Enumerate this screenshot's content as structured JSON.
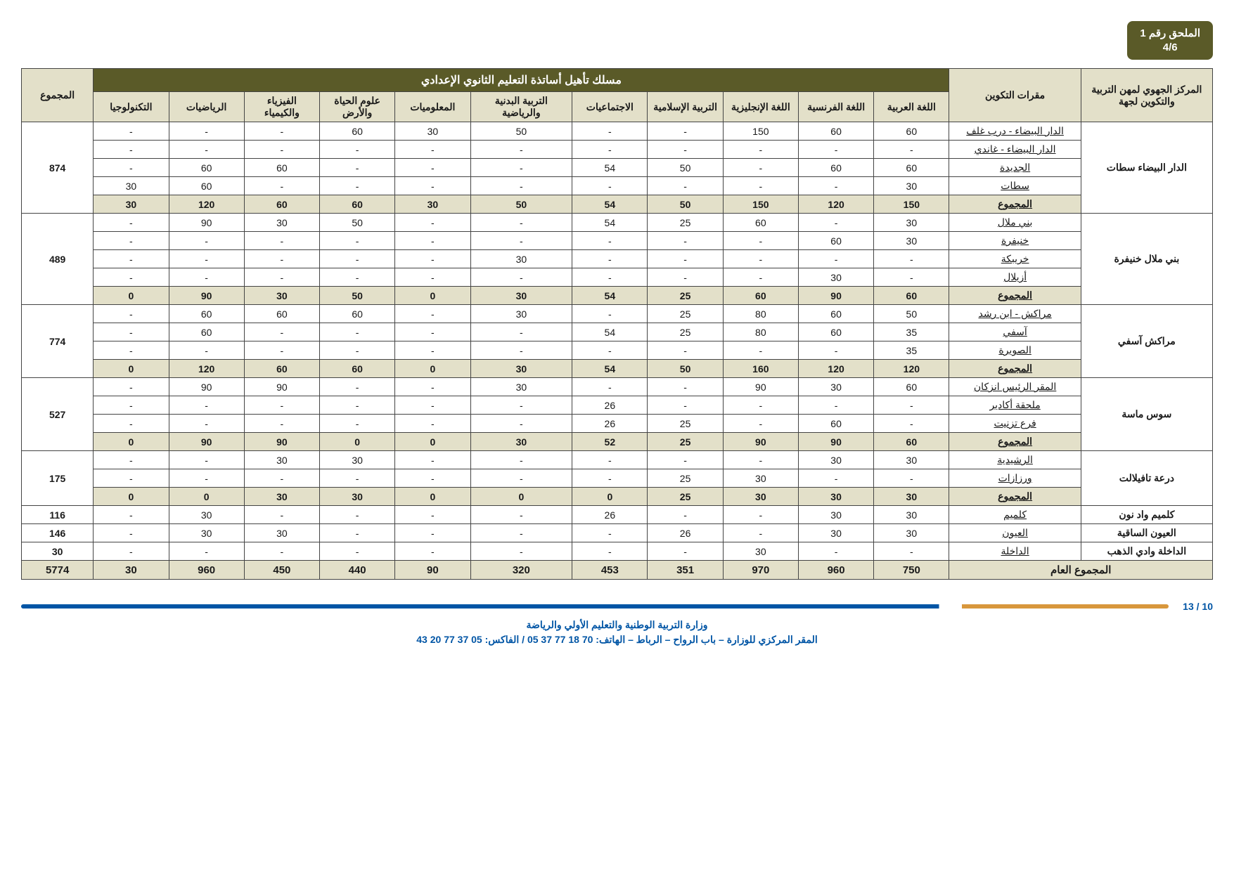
{
  "badge": {
    "line1": "الملحق رقم 1",
    "line2": "4/6"
  },
  "headers": {
    "region": "المركز الجهوي لمهن التربية والتكوين لجهة",
    "center": "مقرات التكوين",
    "group": "مسلك تأهيل أساتذة التعليم الثانوي الإعدادي",
    "total": "المجموع",
    "subjects": [
      "اللغة العربية",
      "اللغة الفرنسية",
      "اللغة الإنجليزية",
      "التربية الإسلامية",
      "الاجتماعيات",
      "التربية البدنية والرياضية",
      "المعلوميات",
      "علوم الحياة والأرض",
      "الفيزياء والكيمياء",
      "الرياضيات",
      "التكنولوجيا"
    ]
  },
  "total_label": "المجموع",
  "grand_total_label": "المجموع العام",
  "blocks": [
    {
      "region": "الدار البيضاء سطات",
      "sum": "874",
      "rows": [
        {
          "center": "الدار البيضاء - درب غلف",
          "v": [
            "60",
            "60",
            "150",
            "-",
            "-",
            "50",
            "30",
            "60",
            "-",
            "-",
            "-"
          ]
        },
        {
          "center": "الدار البيضاء - غاندي",
          "v": [
            "-",
            "-",
            "-",
            "-",
            "-",
            "-",
            "-",
            "-",
            "-",
            "-",
            "-"
          ]
        },
        {
          "center": "الجديدة",
          "v": [
            "60",
            "60",
            "-",
            "50",
            "54",
            "-",
            "-",
            "-",
            "60",
            "60",
            "-"
          ]
        },
        {
          "center": "سطات",
          "v": [
            "30",
            "-",
            "-",
            "-",
            "-",
            "-",
            "-",
            "-",
            "-",
            "60",
            "30"
          ]
        }
      ],
      "total": [
        "150",
        "120",
        "150",
        "50",
        "54",
        "50",
        "30",
        "60",
        "60",
        "120",
        "30"
      ]
    },
    {
      "region": "بني ملال خنيفرة",
      "sum": "489",
      "rows": [
        {
          "center": "بني ملال",
          "v": [
            "30",
            "-",
            "60",
            "25",
            "54",
            "-",
            "-",
            "50",
            "30",
            "90",
            "-"
          ]
        },
        {
          "center": "خنيفرة",
          "v": [
            "30",
            "60",
            "-",
            "-",
            "-",
            "-",
            "-",
            "-",
            "-",
            "-",
            "-"
          ]
        },
        {
          "center": "خريبكة",
          "v": [
            "-",
            "-",
            "-",
            "-",
            "-",
            "30",
            "-",
            "-",
            "-",
            "-",
            "-"
          ]
        },
        {
          "center": "أزيلال",
          "v": [
            "-",
            "30",
            "-",
            "-",
            "-",
            "-",
            "-",
            "-",
            "-",
            "-",
            "-"
          ]
        }
      ],
      "total": [
        "60",
        "90",
        "60",
        "25",
        "54",
        "30",
        "0",
        "50",
        "30",
        "90",
        "0"
      ]
    },
    {
      "region": "مراكش آسفي",
      "sum": "774",
      "rows": [
        {
          "center": "مراكش - ابن رشد",
          "v": [
            "50",
            "60",
            "80",
            "25",
            "-",
            "30",
            "-",
            "60",
            "60",
            "60",
            "-"
          ]
        },
        {
          "center": "آسفي",
          "v": [
            "35",
            "60",
            "80",
            "25",
            "54",
            "-",
            "-",
            "-",
            "-",
            "60",
            "-"
          ]
        },
        {
          "center": "الصويرة",
          "v": [
            "35",
            "-",
            "-",
            "-",
            "-",
            "-",
            "-",
            "-",
            "-",
            "-",
            "-"
          ]
        }
      ],
      "total": [
        "120",
        "120",
        "160",
        "50",
        "54",
        "30",
        "0",
        "60",
        "60",
        "120",
        "0"
      ]
    },
    {
      "region": "سوس ماسة",
      "sum": "527",
      "rows": [
        {
          "center": "المقر الرئيس انزكان",
          "v": [
            "60",
            "30",
            "90",
            "-",
            "-",
            "30",
            "-",
            "-",
            "90",
            "90",
            "-"
          ]
        },
        {
          "center": "ملحقة أكادير",
          "v": [
            "-",
            "-",
            "-",
            "-",
            "26",
            "-",
            "-",
            "-",
            "-",
            "-",
            "-"
          ]
        },
        {
          "center": "فرع تزنيت",
          "v": [
            "-",
            "60",
            "-",
            "25",
            "26",
            "-",
            "-",
            "-",
            "-",
            "-",
            "-"
          ]
        }
      ],
      "total": [
        "60",
        "90",
        "90",
        "25",
        "52",
        "30",
        "0",
        "0",
        "90",
        "90",
        "0"
      ]
    },
    {
      "region": "درعة تافيلالت",
      "sum": "175",
      "rows": [
        {
          "center": "الرشيدية",
          "v": [
            "30",
            "30",
            "-",
            "-",
            "-",
            "-",
            "-",
            "30",
            "30",
            "-",
            "-"
          ]
        },
        {
          "center": "ورزازات",
          "v": [
            "-",
            "-",
            "30",
            "25",
            "-",
            "-",
            "-",
            "-",
            "-",
            "-",
            "-"
          ]
        }
      ],
      "total": [
        "30",
        "30",
        "30",
        "25",
        "0",
        "0",
        "0",
        "30",
        "30",
        "0",
        "0"
      ]
    }
  ],
  "single_rows": [
    {
      "region": "كلميم واد نون",
      "center": "كلميم",
      "sum": "116",
      "v": [
        "30",
        "30",
        "-",
        "-",
        "26",
        "-",
        "-",
        "-",
        "-",
        "30",
        "-"
      ]
    },
    {
      "region": "العيون الساقية",
      "center": "العيون",
      "sum": "146",
      "v": [
        "30",
        "30",
        "-",
        "26",
        "-",
        "-",
        "-",
        "-",
        "30",
        "30",
        "-"
      ]
    },
    {
      "region": "الداخلة وادي الذهب",
      "center": "الداخلة",
      "sum": "30",
      "v": [
        "-",
        "-",
        "30",
        "-",
        "-",
        "-",
        "-",
        "-",
        "-",
        "-",
        "-"
      ]
    }
  ],
  "grand_total": {
    "sum": "5774",
    "v": [
      "750",
      "960",
      "970",
      "351",
      "453",
      "320",
      "90",
      "440",
      "450",
      "960",
      "30"
    ]
  },
  "footer": {
    "page": "10 / 13",
    "line1": "وزارة التربية الوطنية والتعليم الأولي والرياضة",
    "line2": "المقر المركزي للوزارة – باب الرواح – الرباط – الهاتف: 70 18 77 37 05 / الفاكس: 05 37 77 20 43"
  }
}
